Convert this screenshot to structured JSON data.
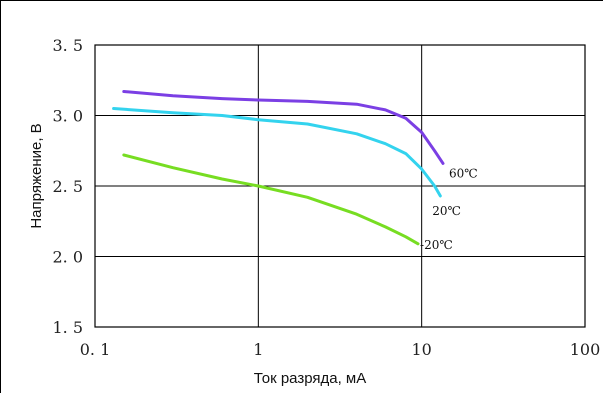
{
  "chart_data": {
    "type": "line",
    "title": "",
    "xlabel": "Ток разряда, мА",
    "ylabel": "Напряжение, В",
    "x_scale": "log",
    "xlim": [
      0.1,
      100
    ],
    "ylim": [
      1.5,
      3.5
    ],
    "grid": true,
    "x_ticks": [
      {
        "value": 0.1,
        "label": "0. 1"
      },
      {
        "value": 1,
        "label": "1"
      },
      {
        "value": 10,
        "label": "10"
      },
      {
        "value": 100,
        "label": "100"
      }
    ],
    "y_ticks": [
      {
        "value": 1.5,
        "label": "1. 5"
      },
      {
        "value": 2.0,
        "label": "2. 0"
      },
      {
        "value": 2.5,
        "label": "2. 5"
      },
      {
        "value": 3.0,
        "label": "3. 0"
      },
      {
        "value": 3.5,
        "label": "3. 5"
      }
    ],
    "series": [
      {
        "name": "60℃",
        "color": "#7b3fe4",
        "x": [
          0.15,
          0.3,
          0.6,
          1.0,
          2.0,
          4.0,
          6.0,
          8.0,
          10.0,
          12.0,
          13.5
        ],
        "y": [
          3.17,
          3.14,
          3.12,
          3.11,
          3.1,
          3.08,
          3.04,
          2.98,
          2.88,
          2.75,
          2.66
        ]
      },
      {
        "name": "20℃",
        "color": "#33d3ee",
        "x": [
          0.13,
          0.3,
          0.6,
          1.0,
          2.0,
          4.0,
          6.0,
          8.0,
          10.0,
          12.0,
          13.0
        ],
        "y": [
          3.05,
          3.02,
          3.0,
          2.97,
          2.94,
          2.87,
          2.8,
          2.73,
          2.62,
          2.5,
          2.43
        ]
      },
      {
        "name": "-20℃",
        "color": "#77dd22",
        "x": [
          0.15,
          0.3,
          0.6,
          1.0,
          2.0,
          4.0,
          6.0,
          8.0,
          9.5
        ],
        "y": [
          2.72,
          2.63,
          2.55,
          2.5,
          2.42,
          2.3,
          2.21,
          2.14,
          2.09
        ]
      }
    ]
  }
}
